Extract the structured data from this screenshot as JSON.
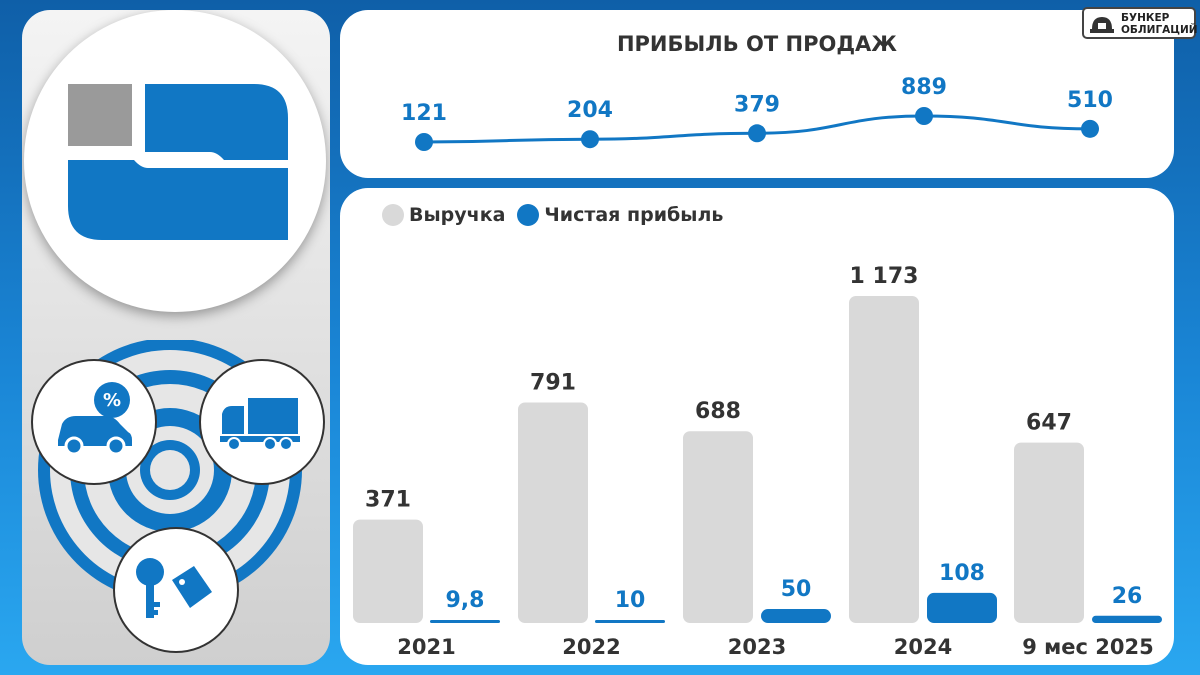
{
  "brand": {
    "line1": "БУНКЕР",
    "line2": "ОБЛИГАЦИЙ"
  },
  "colors": {
    "revenue": "#d9d9d9",
    "profit": "#1177c4",
    "accent": "#1177c4",
    "text": "#333333"
  },
  "chart_data": [
    {
      "type": "line",
      "title": "ПРИБЫЛЬ ОТ ПРОДАЖ",
      "x": [
        "2021",
        "2022",
        "2023",
        "2024",
        "9 мес 2025"
      ],
      "labels": [
        "121",
        "204",
        "379",
        "889",
        "510"
      ],
      "values": [
        121,
        204,
        379,
        889,
        510
      ]
    },
    {
      "type": "bar",
      "categories": [
        "2021",
        "2022",
        "2023",
        "2024",
        "9 мес 2025"
      ],
      "legend": "top-left",
      "series": [
        {
          "name": "Выручка",
          "values": [
            371,
            791,
            688,
            1173,
            647
          ],
          "labels": [
            "371",
            "791",
            "688",
            "1 173",
            "647"
          ]
        },
        {
          "name": "Чистая прибыль",
          "values": [
            9.8,
            10,
            50,
            108,
            26
          ],
          "labels": [
            "9,8",
            "10",
            "50",
            "108",
            "26"
          ]
        }
      ],
      "ylim": [
        0,
        1173
      ]
    }
  ],
  "icons": [
    "company-logo",
    "car-percent-icon",
    "truck-icon",
    "keys-icon",
    "target-rings"
  ]
}
